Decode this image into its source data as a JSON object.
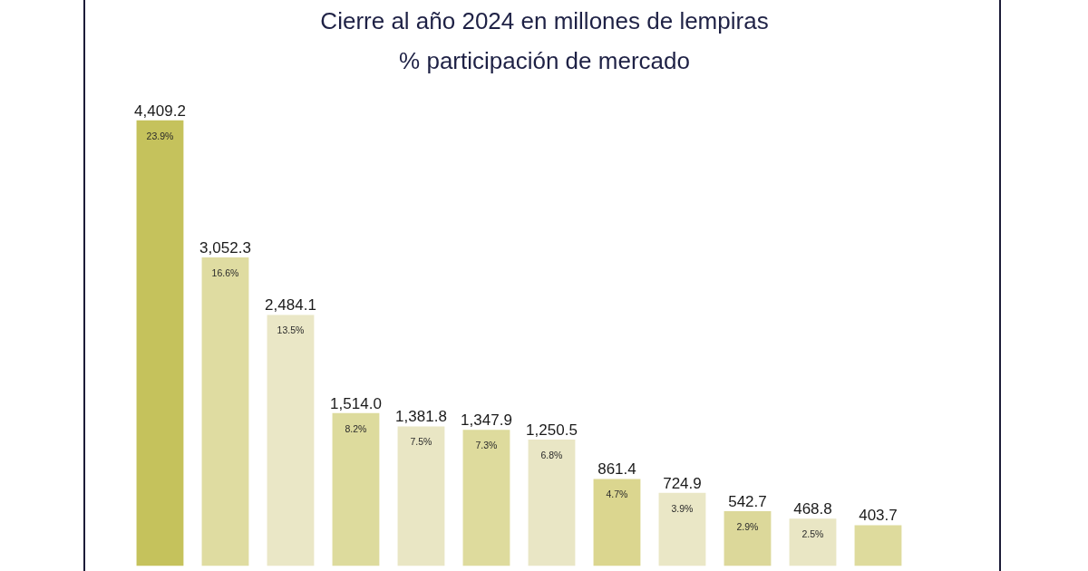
{
  "chart_data": {
    "type": "bar",
    "title": "Cierre al año 2024 en millones de lempiras",
    "subtitle": "% participación de mercado",
    "categories": [
      null,
      null,
      null,
      null,
      null,
      null,
      null,
      null,
      null,
      null,
      null,
      null
    ],
    "values": [
      4409.2,
      3052.3,
      2484.1,
      1514.0,
      1381.8,
      1347.9,
      1250.5,
      861.4,
      724.9,
      542.7,
      468.8,
      403.7
    ],
    "colors": [
      "#c5c25c",
      "#dfdca1",
      "#eae7c6",
      "#dddb9d",
      "#e9e6c4",
      "#dedb9d",
      "#e9e6c5",
      "#dbd68f",
      "#eae7c6",
      "#dcd89a",
      "#e9e6c4",
      "#dedb9d"
    ],
    "value_labels": [
      "4,409.2",
      "3,052.3",
      "2,484.1",
      "1,514.0",
      "1,381.8",
      "1,347.9",
      "1,250.5",
      "861.4",
      "724.9",
      "542.7",
      "468.8",
      "403.7"
    ],
    "annotations": [
      "23.9%",
      "16.6%",
      "13.5%",
      "8.2%",
      "7.5%",
      "7.3%",
      "6.8%",
      "4.7%",
      "3.9%",
      "2.9%",
      "2.5%"
    ]
  }
}
